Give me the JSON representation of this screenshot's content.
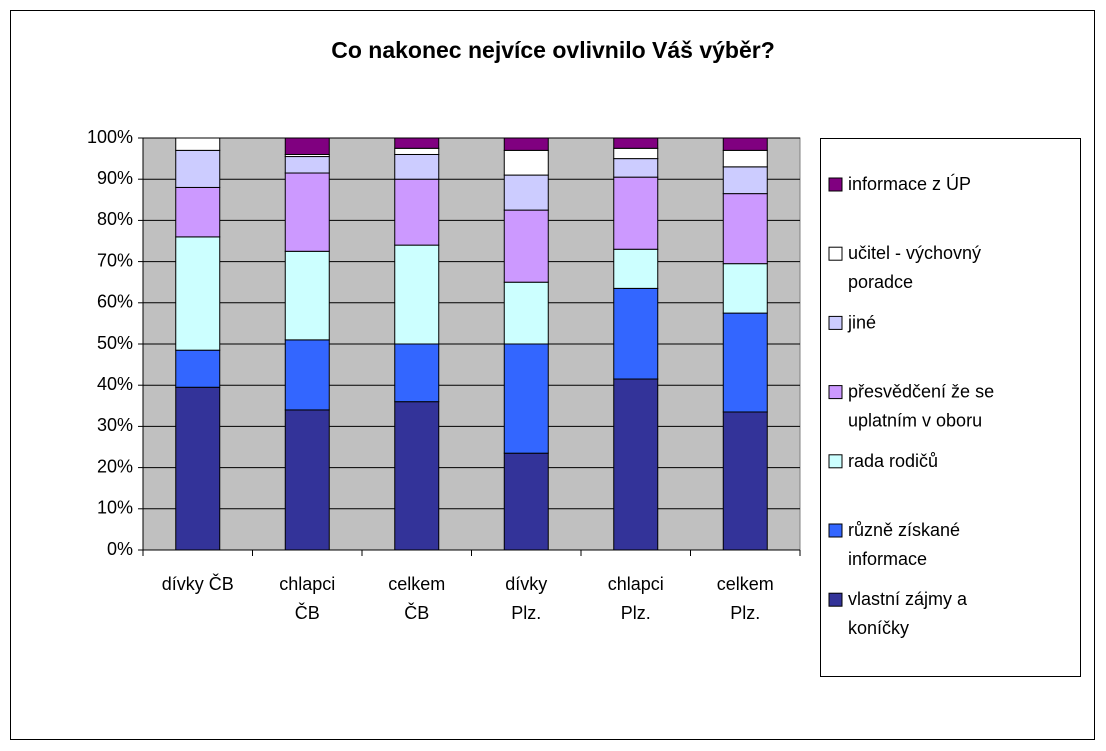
{
  "chart_data": {
    "type": "stacked_bar_percent",
    "title": "Co nakonec nejvíce ovlivnilo Váš výběr?",
    "categories": [
      "dívky ČB",
      "chlapci ČB",
      "celkem ČB",
      "dívky Plz.",
      "chlapci Plz.",
      "celkem Plz."
    ],
    "series": [
      {
        "name": "vlastní zájmy a koníčky",
        "color": "#333399",
        "values": [
          39.5,
          34,
          36,
          23.5,
          41.5,
          33.5
        ]
      },
      {
        "name": "různě získané informace",
        "color": "#3366ff",
        "values": [
          9,
          17,
          14,
          26.5,
          22,
          24
        ]
      },
      {
        "name": "rada rodičů",
        "color": "#ccffff",
        "values": [
          27.5,
          21.5,
          24,
          15,
          9.5,
          12
        ]
      },
      {
        "name": "přesvědčení že se uplatním v oboru",
        "color": "#cc99ff",
        "values": [
          12,
          19,
          16,
          17.5,
          17.5,
          17
        ]
      },
      {
        "name": "jiné",
        "color": "#ccccff",
        "values": [
          9,
          4,
          6,
          8.5,
          4.5,
          6.5
        ]
      },
      {
        "name": "učitel - výchovný poradce",
        "color": "#ffffff",
        "values": [
          3,
          0.5,
          1.5,
          6,
          2.5,
          4
        ]
      },
      {
        "name": "informace z ÚP",
        "color": "#800080",
        "values": [
          0,
          4,
          2.5,
          3,
          2.5,
          3
        ]
      }
    ],
    "ylim": [
      0,
      100
    ],
    "yticks": [
      {
        "value": 0,
        "label": "0%"
      },
      {
        "value": 10,
        "label": "10%"
      },
      {
        "value": 20,
        "label": "20%"
      },
      {
        "value": 30,
        "label": "30%"
      },
      {
        "value": 40,
        "label": "40%"
      },
      {
        "value": 50,
        "label": "50%"
      },
      {
        "value": 60,
        "label": "60%"
      },
      {
        "value": 70,
        "label": "70%"
      },
      {
        "value": 80,
        "label": "80%"
      },
      {
        "value": 90,
        "label": "90%"
      },
      {
        "value": 100,
        "label": "100%"
      }
    ],
    "grid": true,
    "legend": "right"
  }
}
